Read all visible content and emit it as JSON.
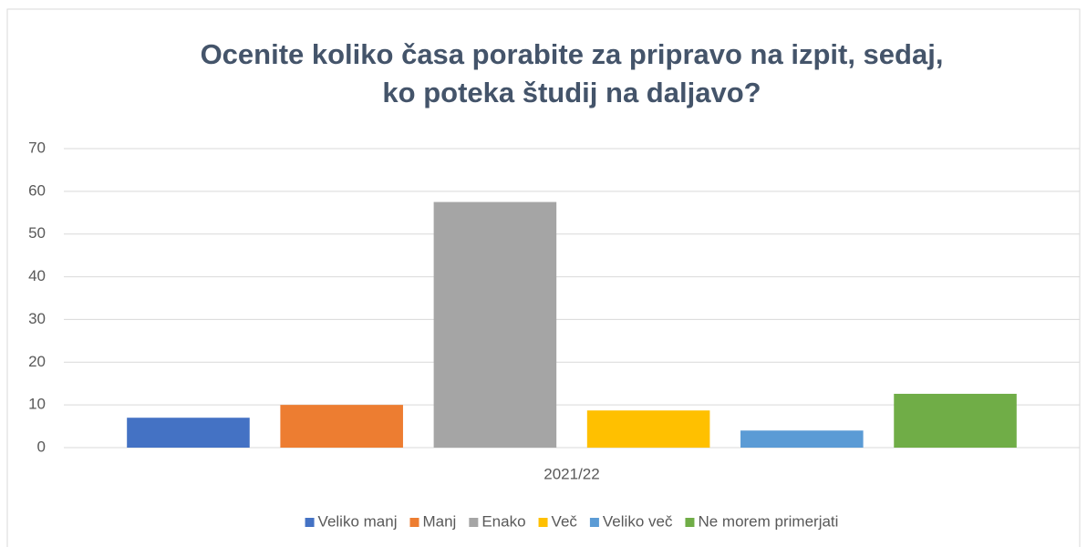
{
  "chart_data": {
    "type": "bar",
    "title": [
      "Ocenite koliko časa porabite za pripravo na izpit, sedaj,",
      "ko poteka študij na daljavo?"
    ],
    "categories": [
      "2021/22"
    ],
    "series": [
      {
        "name": "Veliko manj",
        "color": "#4472c4",
        "values": [
          7
        ]
      },
      {
        "name": "Manj",
        "color": "#ed7d31",
        "values": [
          10
        ]
      },
      {
        "name": "Enako",
        "color": "#a5a5a5",
        "values": [
          57.5
        ]
      },
      {
        "name": "Več",
        "color": "#ffc000",
        "values": [
          8.7
        ]
      },
      {
        "name": "Veliko več",
        "color": "#5b9bd5",
        "values": [
          4
        ]
      },
      {
        "name": "Ne morem primerjati",
        "color": "#70ad47",
        "values": [
          12.6
        ]
      }
    ],
    "ylim": [
      0,
      70
    ],
    "yticks": [
      0,
      10,
      20,
      30,
      40,
      50,
      60,
      70
    ],
    "grid": true,
    "legend": "bottom"
  }
}
